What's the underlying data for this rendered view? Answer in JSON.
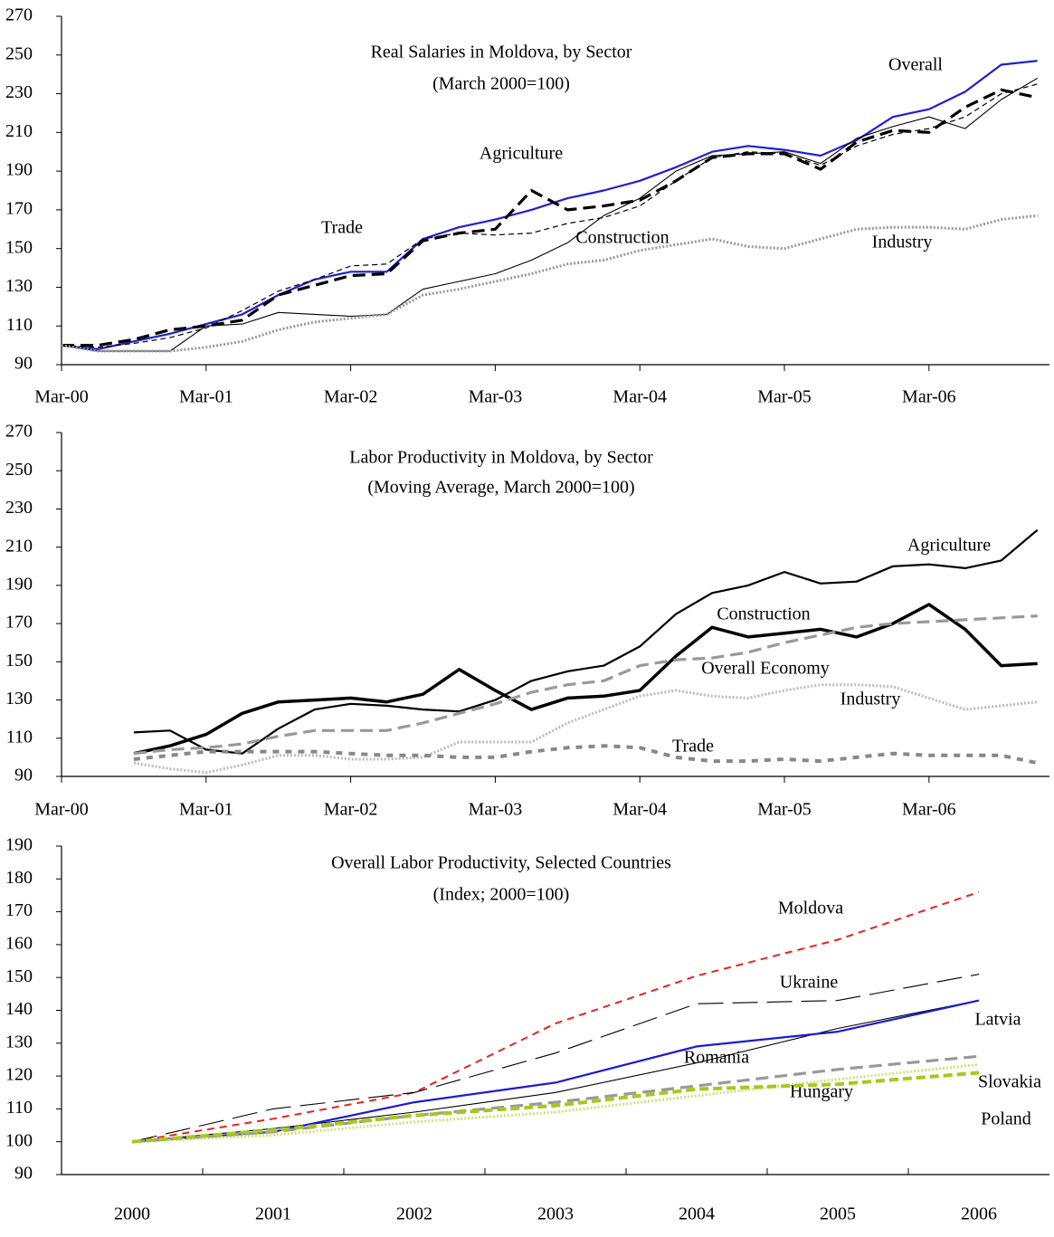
{
  "chart_data": [
    {
      "type": "line",
      "title": "Real Salaries in Moldova, by Sector",
      "subtitle": "(March 2000=100)",
      "x": [
        0,
        3,
        6,
        9,
        12,
        15,
        18,
        21,
        24,
        27,
        30,
        33,
        36,
        39,
        42,
        45,
        48,
        51,
        54,
        57,
        60,
        63,
        66,
        69,
        72,
        75,
        78,
        81
      ],
      "xlim": [
        0,
        82
      ],
      "xticks": [
        {
          "value": 0,
          "label": "Mar-00"
        },
        {
          "value": 12,
          "label": "Mar-01"
        },
        {
          "value": 24,
          "label": "Mar-02"
        },
        {
          "value": 36,
          "label": "Mar-03"
        },
        {
          "value": 48,
          "label": "Mar-04"
        },
        {
          "value": 60,
          "label": "Mar-05"
        },
        {
          "value": 72,
          "label": "Mar-06"
        }
      ],
      "ylim": [
        90,
        270
      ],
      "yticks": [
        90,
        110,
        130,
        150,
        170,
        190,
        210,
        230,
        250,
        270
      ],
      "series": [
        {
          "name": "Overall",
          "color": "#1f1fd0",
          "style": "solid",
          "values": [
            100,
            98,
            102,
            106,
            111,
            116,
            126,
            134,
            138,
            138,
            155,
            161,
            165,
            170,
            176,
            180,
            185,
            192,
            200,
            203,
            201,
            198,
            206,
            218,
            222,
            231,
            245,
            247
          ]
        },
        {
          "name": "Agriculture",
          "color": "#000000",
          "style": "thick-dashed",
          "values": [
            100,
            100,
            103,
            108,
            110,
            113,
            126,
            131,
            136,
            137,
            154,
            158,
            160,
            180,
            170,
            172,
            175,
            185,
            197,
            199,
            199,
            191,
            205,
            211,
            210,
            223,
            232,
            228
          ]
        },
        {
          "name": "Trade",
          "color": "#000000",
          "style": "thin-dashed",
          "values": [
            100,
            99,
            101,
            104,
            109,
            118,
            128,
            134,
            141,
            142,
            155,
            158,
            157,
            158,
            163,
            166,
            172,
            185,
            197,
            200,
            199,
            193,
            203,
            209,
            212,
            218,
            230,
            235
          ]
        },
        {
          "name": "Construction",
          "color": "#000000",
          "style": "thin",
          "values": [
            100,
            97,
            97,
            97,
            110,
            111,
            117,
            116,
            115,
            116,
            129,
            133,
            137,
            144,
            153,
            167,
            176,
            190,
            198,
            199,
            200,
            194,
            207,
            213,
            218,
            212,
            227,
            238
          ]
        },
        {
          "name": "Industry",
          "color": "#999999",
          "style": "dotted",
          "values": [
            100,
            97,
            97,
            97,
            99,
            102,
            108,
            112,
            114,
            116,
            126,
            129,
            133,
            137,
            142,
            144,
            149,
            152,
            155,
            151,
            150,
            155,
            160,
            161,
            161,
            160,
            165,
            167
          ]
        }
      ]
    },
    {
      "type": "line",
      "title": "Labor Productivity in Moldova, by Sector",
      "subtitle": "(Moving Average, March 2000=100)",
      "x": [
        6,
        9,
        12,
        15,
        18,
        21,
        24,
        27,
        30,
        33,
        36,
        39,
        42,
        45,
        48,
        51,
        54,
        57,
        60,
        63,
        66,
        69,
        72,
        75,
        78,
        81
      ],
      "xlim": [
        0,
        82
      ],
      "xticks": [
        {
          "value": 0,
          "label": "Mar-00"
        },
        {
          "value": 12,
          "label": "Mar-01"
        },
        {
          "value": 24,
          "label": "Mar-02"
        },
        {
          "value": 36,
          "label": "Mar-03"
        },
        {
          "value": 48,
          "label": "Mar-04"
        },
        {
          "value": 60,
          "label": "Mar-05"
        },
        {
          "value": 72,
          "label": "Mar-06"
        }
      ],
      "ylim": [
        90,
        270
      ],
      "yticks": [
        90,
        110,
        130,
        150,
        170,
        190,
        210,
        230,
        250,
        270
      ],
      "series": [
        {
          "name": "Agriculture",
          "color": "#000000",
          "style": "solid",
          "values": [
            113,
            114,
            104,
            102,
            115,
            125,
            128,
            127,
            125,
            124,
            130,
            140,
            145,
            148,
            158,
            175,
            186,
            190,
            197,
            191,
            192,
            200,
            201,
            199,
            203,
            219
          ]
        },
        {
          "name": "Construction",
          "color": "#000000",
          "style": "thick",
          "values": [
            102,
            106,
            112,
            123,
            129,
            130,
            131,
            129,
            133,
            146,
            135,
            125,
            131,
            132,
            135,
            153,
            168,
            163,
            165,
            167,
            163,
            170,
            180,
            167,
            148,
            149
          ]
        },
        {
          "name": "Overall Economy",
          "color": "#999999",
          "style": "thick-dashed",
          "values": [
            102,
            104,
            105,
            107,
            111,
            114,
            114,
            114,
            118,
            123,
            128,
            134,
            138,
            140,
            148,
            151,
            152,
            155,
            160,
            164,
            168,
            170,
            171,
            172,
            173,
            174
          ]
        },
        {
          "name": "Industry",
          "color": "#bbbbbb",
          "style": "dotted",
          "values": [
            97,
            94,
            92,
            96,
            101,
            101,
            99,
            99,
            100,
            108,
            108,
            108,
            118,
            125,
            132,
            135,
            132,
            131,
            135,
            138,
            138,
            137,
            131,
            125,
            127,
            129
          ]
        },
        {
          "name": "Trade",
          "color": "#888888",
          "style": "thick-dotted",
          "values": [
            99,
            101,
            103,
            103,
            103,
            103,
            102,
            101,
            101,
            100,
            100,
            103,
            105,
            106,
            105,
            100,
            98,
            98,
            99,
            98,
            100,
            102,
            101,
            101,
            101,
            97
          ]
        }
      ]
    },
    {
      "type": "line",
      "title": "Overall Labor Productivity, Selected Countries",
      "subtitle": "(Index; 2000=100)",
      "categories": [
        "2000",
        "2001",
        "2002",
        "2003",
        "2004",
        "2005",
        "2006"
      ],
      "ylim": [
        90,
        190
      ],
      "yticks": [
        90,
        100,
        110,
        120,
        130,
        140,
        150,
        160,
        170,
        180,
        190
      ],
      "series": [
        {
          "name": "Moldova",
          "color": "#e8231c",
          "style": "dashed",
          "values": [
            100,
            107,
            115,
            136,
            150.5,
            161.5,
            176
          ]
        },
        {
          "name": "Ukraine",
          "color": "#000000",
          "style": "long-dashed",
          "values": [
            100,
            110,
            115,
            127,
            142,
            143,
            151
          ]
        },
        {
          "name": "Latvia",
          "color": "#000000",
          "style": "thin",
          "values": [
            100,
            104,
            109,
            115,
            124,
            134.5,
            143
          ]
        },
        {
          "name": "Romania",
          "color": "#1a1ad6",
          "style": "solid",
          "values": [
            100,
            103,
            112,
            118,
            129,
            133.5,
            143
          ]
        },
        {
          "name": "Hungary",
          "color": "#d6de7a",
          "style": "dotted",
          "values": [
            100,
            102,
            106,
            109,
            114,
            119,
            123.5
          ]
        },
        {
          "name": "Slovakia",
          "color": "#999999",
          "style": "thick-dashed",
          "values": [
            100,
            103,
            108,
            112,
            117,
            122,
            126
          ]
        },
        {
          "name": "Poland",
          "color": "#a5c91c",
          "style": "dashed-green",
          "values": [
            100,
            103.5,
            108,
            111,
            116,
            117.5,
            121
          ]
        }
      ]
    }
  ]
}
